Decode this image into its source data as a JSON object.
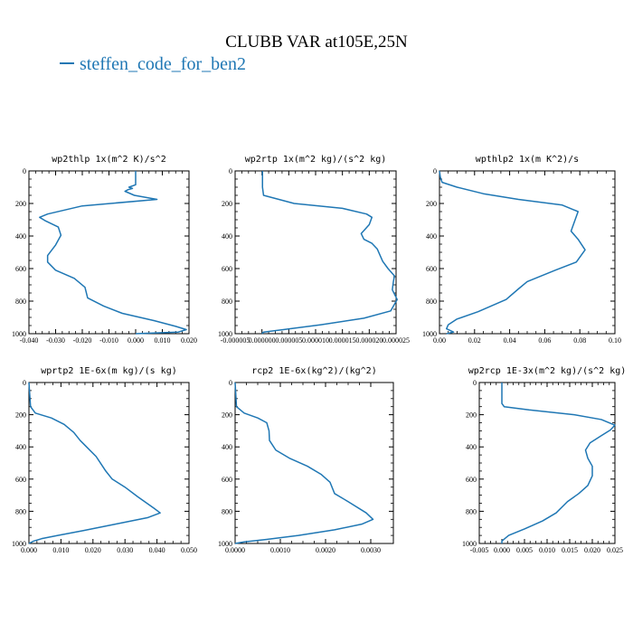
{
  "title": "CLUBB VAR at105E,25N",
  "legend": {
    "label": "steffen_code_for_ben2",
    "color": "#1f77b4"
  },
  "chart_data": [
    {
      "type": "line",
      "title": "wp2thlp  1x(m^2 K)/s^2",
      "xlim": [
        -0.04,
        0.02
      ],
      "ylim": [
        0,
        1000
      ],
      "y_inverted": true,
      "xticks": [
        "-0.040",
        "-0.030",
        "-0.020",
        "-0.010",
        "0.000",
        "0.010",
        "0.020"
      ],
      "yticks": [
        "0",
        "200",
        "400",
        "600",
        "800",
        "1000"
      ],
      "series": [
        {
          "color": "#1f77b4",
          "points": [
            [
              0.0,
              0
            ],
            [
              0.0,
              85
            ],
            [
              -0.0025,
              100
            ],
            [
              -0.0012,
              108
            ],
            [
              -0.0028,
              115
            ],
            [
              -0.004,
              125
            ],
            [
              -0.0005,
              150
            ],
            [
              0.008,
              175
            ],
            [
              -0.02,
              215
            ],
            [
              -0.033,
              265
            ],
            [
              -0.036,
              285
            ],
            [
              -0.034,
              305
            ],
            [
              -0.029,
              345
            ],
            [
              -0.028,
              395
            ],
            [
              -0.03,
              455
            ],
            [
              -0.033,
              520
            ],
            [
              -0.033,
              560
            ],
            [
              -0.03,
              610
            ],
            [
              -0.023,
              660
            ],
            [
              -0.019,
              715
            ],
            [
              -0.018,
              780
            ],
            [
              -0.012,
              830
            ],
            [
              -0.005,
              875
            ],
            [
              0.007,
              920
            ],
            [
              0.015,
              955
            ],
            [
              0.019,
              975
            ],
            [
              0.016,
              990
            ],
            [
              0.0,
              1000
            ]
          ]
        }
      ]
    },
    {
      "type": "line",
      "title": "wp2rtp  1x(m^2 kg)/(s^2 kg)",
      "xlim": [
        -5e-06,
        2.5e-05
      ],
      "ylim": [
        0,
        1000
      ],
      "y_inverted": true,
      "xticks": [
        "-0.000005",
        "0.000000",
        "0.000005",
        "0.000010",
        "0.000015",
        "0.000020",
        "0.000025"
      ],
      "yticks": [
        "0",
        "200",
        "400",
        "600",
        "800",
        "1000"
      ],
      "series": [
        {
          "color": "#1f77b4",
          "points": [
            [
              1e-07,
              0
            ],
            [
              1e-07,
              100
            ],
            [
              3e-07,
              150
            ],
            [
              6e-06,
              200
            ],
            [
              1.5e-05,
              230
            ],
            [
              1.95e-05,
              265
            ],
            [
              2.05e-05,
              285
            ],
            [
              2e-05,
              330
            ],
            [
              1.85e-05,
              385
            ],
            [
              1.9e-05,
              420
            ],
            [
              2.05e-05,
              445
            ],
            [
              2.15e-05,
              480
            ],
            [
              2.25e-05,
              555
            ],
            [
              2.35e-05,
              600
            ],
            [
              2.47e-05,
              645
            ],
            [
              2.45e-05,
              680
            ],
            [
              2.43e-05,
              730
            ],
            [
              2.52e-05,
              790
            ],
            [
              2.4e-05,
              860
            ],
            [
              1.9e-05,
              905
            ],
            [
              1.1e-05,
              945
            ],
            [
              4e-06,
              975
            ],
            [
              3e-07,
              990
            ],
            [
              0.0,
              1000
            ]
          ]
        }
      ]
    },
    {
      "type": "line",
      "title": "wpthlp2  1x(m K^2)/s",
      "xlim": [
        0.0,
        0.1
      ],
      "ylim": [
        0,
        1000
      ],
      "y_inverted": true,
      "xticks": [
        "0.00",
        "0.02",
        "0.04",
        "0.06",
        "0.08",
        "0.10"
      ],
      "yticks": [
        "0",
        "200",
        "400",
        "600",
        "800",
        "1000"
      ],
      "series": [
        {
          "color": "#1f77b4",
          "points": [
            [
              0.0,
              0
            ],
            [
              0.0005,
              40
            ],
            [
              0.0015,
              70
            ],
            [
              0.01,
              100
            ],
            [
              0.025,
              140
            ],
            [
              0.045,
              175
            ],
            [
              0.07,
              210
            ],
            [
              0.079,
              250
            ],
            [
              0.077,
              310
            ],
            [
              0.075,
              370
            ],
            [
              0.079,
              420
            ],
            [
              0.083,
              485
            ],
            [
              0.078,
              560
            ],
            [
              0.066,
              610
            ],
            [
              0.05,
              680
            ],
            [
              0.045,
              725
            ],
            [
              0.038,
              790
            ],
            [
              0.022,
              865
            ],
            [
              0.01,
              910
            ],
            [
              0.005,
              945
            ],
            [
              0.004,
              970
            ],
            [
              0.008,
              990
            ],
            [
              0.004,
              1000
            ]
          ]
        }
      ]
    },
    {
      "type": "line",
      "title": "wprtp2  1E-6x(m kg)/(s kg)",
      "xlim": [
        0.0,
        0.05
      ],
      "ylim": [
        0,
        1000
      ],
      "y_inverted": true,
      "xticks": [
        "0.000",
        "0.010",
        "0.020",
        "0.030",
        "0.040",
        "0.050"
      ],
      "yticks": [
        "0",
        "200",
        "400",
        "600",
        "800",
        "1000"
      ],
      "series": [
        {
          "color": "#1f77b4",
          "points": [
            [
              0.0,
              0
            ],
            [
              0.0005,
              150
            ],
            [
              0.002,
              190
            ],
            [
              0.007,
              220
            ],
            [
              0.011,
              260
            ],
            [
              0.014,
              310
            ],
            [
              0.016,
              360
            ],
            [
              0.018,
              400
            ],
            [
              0.021,
              460
            ],
            [
              0.024,
              550
            ],
            [
              0.026,
              600
            ],
            [
              0.03,
              650
            ],
            [
              0.034,
              710
            ],
            [
              0.039,
              780
            ],
            [
              0.041,
              810
            ],
            [
              0.037,
              840
            ],
            [
              0.027,
              880
            ],
            [
              0.017,
              920
            ],
            [
              0.009,
              950
            ],
            [
              0.004,
              970
            ],
            [
              0.0015,
              985
            ],
            [
              0.0,
              1000
            ]
          ]
        }
      ]
    },
    {
      "type": "line",
      "title": "rcp2  1E-6x(kg^2)/(kg^2)",
      "xlim": [
        0.0,
        0.0035
      ],
      "ylim": [
        0,
        1000
      ],
      "y_inverted": true,
      "xticks": [
        "0.0000",
        "0.0010",
        "0.0020",
        "0.0030"
      ],
      "yticks": [
        "0",
        "200",
        "400",
        "600",
        "800",
        "1000"
      ],
      "series": [
        {
          "color": "#1f77b4",
          "points": [
            [
              0.0,
              0
            ],
            [
              3e-05,
              150
            ],
            [
              0.0002,
              190
            ],
            [
              0.0005,
              220
            ],
            [
              0.0007,
              250
            ],
            [
              0.00075,
              300
            ],
            [
              0.00076,
              360
            ],
            [
              0.0009,
              420
            ],
            [
              0.0012,
              470
            ],
            [
              0.0016,
              520
            ],
            [
              0.0019,
              570
            ],
            [
              0.0021,
              620
            ],
            [
              0.0022,
              690
            ],
            [
              0.0025,
              740
            ],
            [
              0.0029,
              810
            ],
            [
              0.00305,
              850
            ],
            [
              0.0028,
              880
            ],
            [
              0.0022,
              915
            ],
            [
              0.0014,
              950
            ],
            [
              0.0007,
              975
            ],
            [
              0.0002,
              990
            ],
            [
              0.0,
              1000
            ]
          ]
        }
      ]
    },
    {
      "type": "line",
      "title": "wp2rcp  1E-3x(m^2 kg)/(s^2 kg)",
      "xlim": [
        -0.005,
        0.025
      ],
      "ylim": [
        0,
        1000
      ],
      "y_inverted": true,
      "xticks": [
        "-0.005",
        "0.000",
        "0.005",
        "0.010",
        "0.015",
        "0.020",
        "0.025"
      ],
      "yticks": [
        "0",
        "200",
        "400",
        "600",
        "800",
        "1000"
      ],
      "series": [
        {
          "color": "#1f77b4",
          "points": [
            [
              0.0,
              0
            ],
            [
              0.0,
              130
            ],
            [
              0.0005,
              150
            ],
            [
              0.006,
              170
            ],
            [
              0.016,
              200
            ],
            [
              0.022,
              230
            ],
            [
              0.025,
              265
            ],
            [
              0.024,
              295
            ],
            [
              0.022,
              330
            ],
            [
              0.0195,
              375
            ],
            [
              0.0185,
              420
            ],
            [
              0.019,
              470
            ],
            [
              0.02,
              520
            ],
            [
              0.02,
              580
            ],
            [
              0.019,
              640
            ],
            [
              0.017,
              690
            ],
            [
              0.0145,
              740
            ],
            [
              0.012,
              810
            ],
            [
              0.009,
              860
            ],
            [
              0.005,
              910
            ],
            [
              0.0015,
              950
            ],
            [
              0.0,
              985
            ],
            [
              0.0,
              1000
            ]
          ]
        }
      ]
    }
  ]
}
